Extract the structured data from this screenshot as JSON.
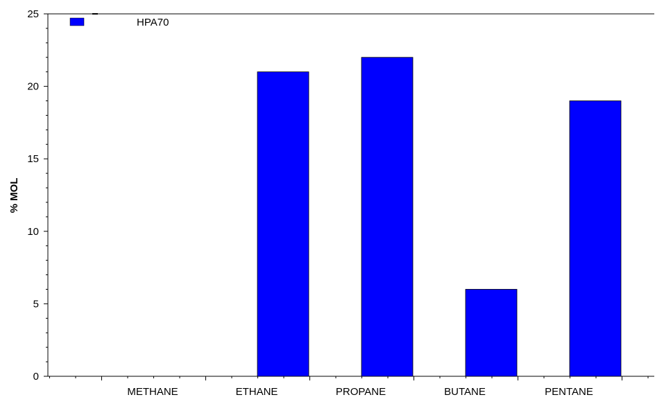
{
  "chart_data": {
    "type": "bar",
    "categories": [
      "METHANE",
      "ETHANE",
      "PROPANE",
      "BUTANE",
      "PENTANE"
    ],
    "series": [
      {
        "name": "HPA70",
        "color": "#0000ff",
        "values": [
          0,
          21,
          22,
          6,
          19
        ]
      }
    ],
    "ylabel": "% MOL",
    "xlabel": "",
    "ylim": [
      0,
      25
    ],
    "yticks": [
      0,
      5,
      10,
      15,
      20,
      25
    ],
    "grid": false,
    "legend_position": "top-left"
  }
}
